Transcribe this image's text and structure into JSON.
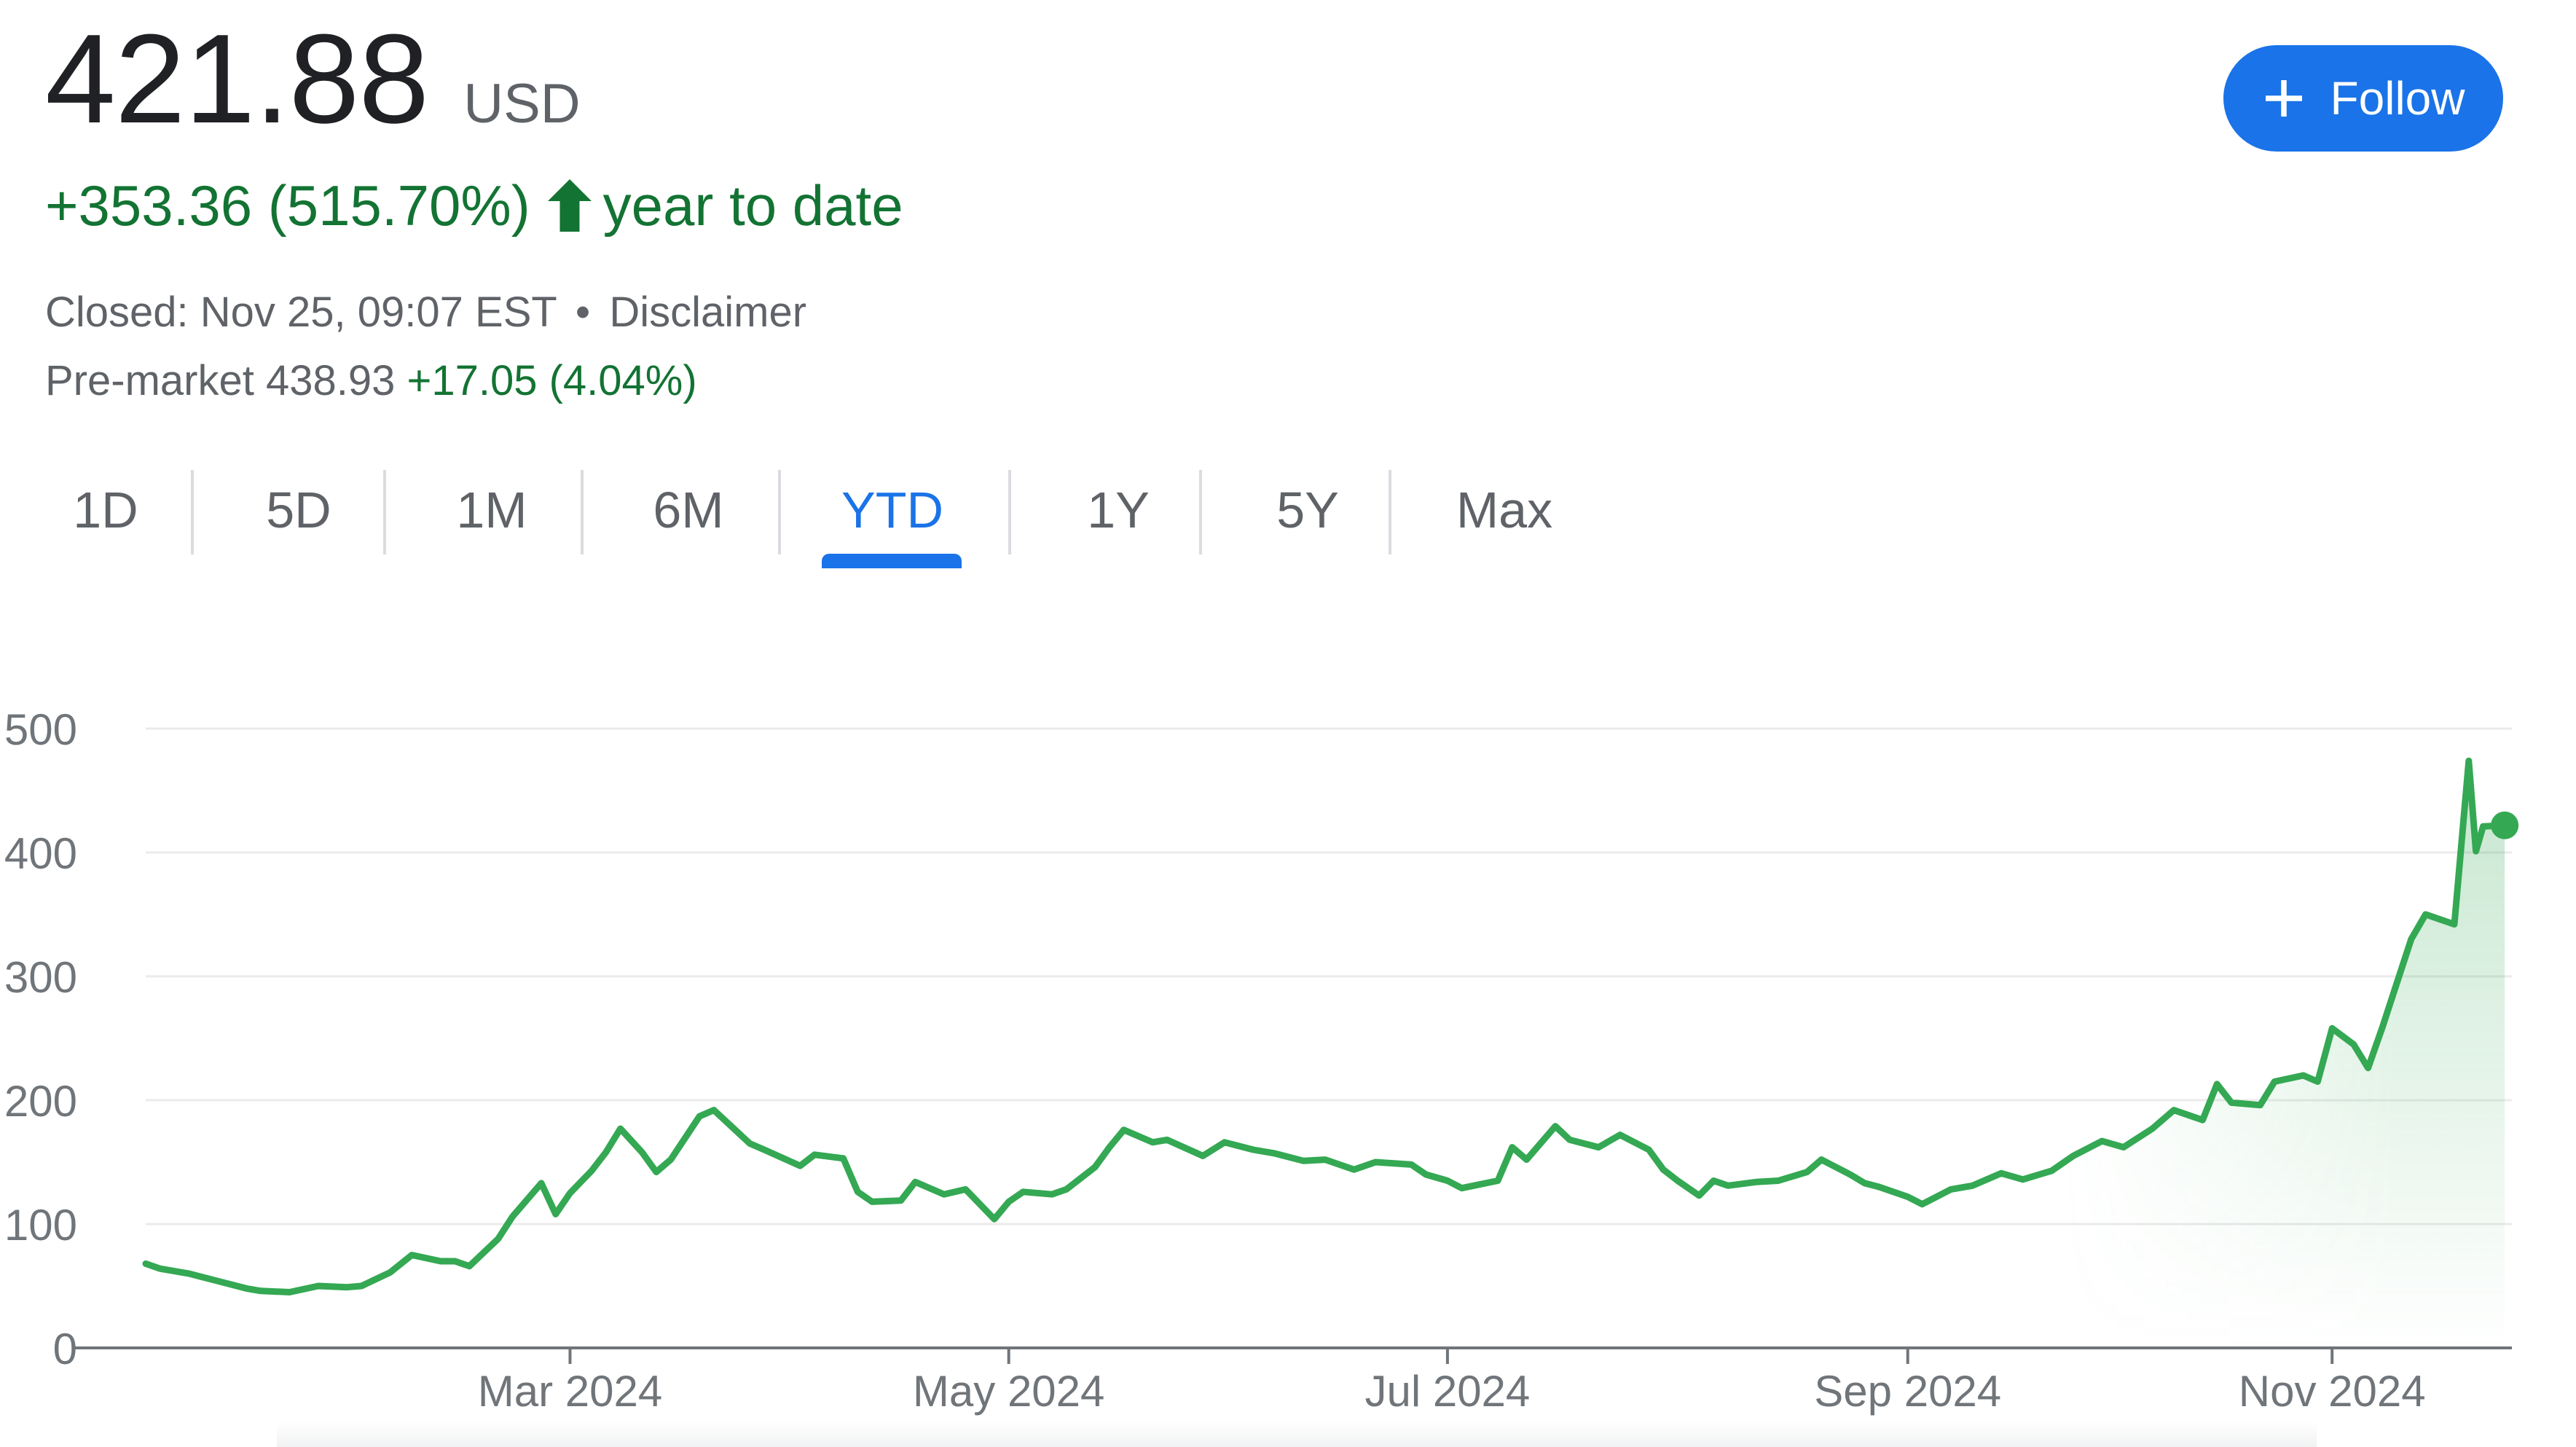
{
  "quote": {
    "price": "421.88",
    "currency": "USD",
    "change": "+353.36 (515.70%)",
    "change_period": "year to date",
    "closed_text": "Closed: Nov 25, 09:07 EST",
    "separator": "•",
    "disclaimer": "Disclaimer",
    "premarket_label": "Pre-market 438.93",
    "premarket_change": "+17.05 (4.04%)"
  },
  "follow_button": {
    "label": "Follow",
    "icon": "plus-icon",
    "color": "#1a73e8"
  },
  "range_tabs": [
    {
      "label": "1D"
    },
    {
      "label": "5D"
    },
    {
      "label": "1M"
    },
    {
      "label": "6M"
    },
    {
      "label": "YTD",
      "selected": true
    },
    {
      "label": "1Y"
    },
    {
      "label": "5Y"
    },
    {
      "label": "Max"
    }
  ],
  "colors": {
    "positive": "#137333",
    "line": "#34a853",
    "accent": "#1a73e8",
    "text": "#202124",
    "muted": "#5f6368"
  },
  "chart_data": {
    "type": "area",
    "title": "",
    "xlabel": "",
    "ylabel": "",
    "ylim": [
      0,
      500
    ],
    "yticks": [
      0,
      100,
      200,
      300,
      400,
      500
    ],
    "grid": true,
    "xlim": [
      "2024-01-02",
      "2024-11-26"
    ],
    "xticks": [
      {
        "date": "2024-03-01",
        "label": "Mar 2024"
      },
      {
        "date": "2024-05-01",
        "label": "May 2024"
      },
      {
        "date": "2024-07-01",
        "label": "Jul 2024"
      },
      {
        "date": "2024-09-03",
        "label": "Sep 2024"
      },
      {
        "date": "2024-11-01",
        "label": "Nov 2024"
      }
    ],
    "series": [
      {
        "x": [
          "2024-01-02",
          "2024-01-04",
          "2024-01-08",
          "2024-01-12",
          "2024-01-16",
          "2024-01-18",
          "2024-01-22",
          "2024-01-26",
          "2024-01-30",
          "2024-02-01",
          "2024-02-05",
          "2024-02-08",
          "2024-02-12",
          "2024-02-14",
          "2024-02-16",
          "2024-02-20",
          "2024-02-22",
          "2024-02-26",
          "2024-02-28",
          "2024-03-01",
          "2024-03-04",
          "2024-03-06",
          "2024-03-08",
          "2024-03-11",
          "2024-03-13",
          "2024-03-15",
          "2024-03-19",
          "2024-03-21",
          "2024-03-26",
          "2024-03-28",
          "2024-04-02",
          "2024-04-04",
          "2024-04-08",
          "2024-04-10",
          "2024-04-12",
          "2024-04-16",
          "2024-04-18",
          "2024-04-22",
          "2024-04-25",
          "2024-04-29",
          "2024-05-01",
          "2024-05-03",
          "2024-05-07",
          "2024-05-09",
          "2024-05-13",
          "2024-05-15",
          "2024-05-17",
          "2024-05-21",
          "2024-05-23",
          "2024-05-28",
          "2024-05-31",
          "2024-06-04",
          "2024-06-07",
          "2024-06-11",
          "2024-06-14",
          "2024-06-18",
          "2024-06-21",
          "2024-06-26",
          "2024-06-28",
          "2024-07-01",
          "2024-07-03",
          "2024-07-08",
          "2024-07-10",
          "2024-07-12",
          "2024-07-16",
          "2024-07-18",
          "2024-07-22",
          "2024-07-25",
          "2024-07-29",
          "2024-07-31",
          "2024-08-02",
          "2024-08-05",
          "2024-08-07",
          "2024-08-09",
          "2024-08-13",
          "2024-08-16",
          "2024-08-20",
          "2024-08-22",
          "2024-08-26",
          "2024-08-28",
          "2024-08-30",
          "2024-09-03",
          "2024-09-05",
          "2024-09-09",
          "2024-09-12",
          "2024-09-16",
          "2024-09-19",
          "2024-09-23",
          "2024-09-26",
          "2024-09-30",
          "2024-10-03",
          "2024-10-07",
          "2024-10-10",
          "2024-10-14",
          "2024-10-16",
          "2024-10-18",
          "2024-10-22",
          "2024-10-24",
          "2024-10-28",
          "2024-10-30",
          "2024-11-01",
          "2024-11-04",
          "2024-11-06",
          "2024-11-08",
          "2024-11-12",
          "2024-11-14",
          "2024-11-18",
          "2024-11-20",
          "2024-11-21",
          "2024-11-22",
          "2024-11-25"
        ],
        "values": [
          68,
          64,
          60,
          54,
          48,
          46,
          45,
          50,
          49,
          50,
          61,
          75,
          70,
          70,
          66,
          88,
          106,
          133,
          108,
          125,
          143,
          158,
          177,
          158,
          142,
          152,
          187,
          192,
          165,
          160,
          147,
          156,
          153,
          126,
          118,
          119,
          134,
          124,
          128,
          104,
          118,
          126,
          124,
          128,
          146,
          162,
          176,
          166,
          168,
          155,
          166,
          160,
          157,
          151,
          152,
          144,
          150,
          148,
          140,
          135,
          129,
          135,
          162,
          152,
          179,
          168,
          162,
          172,
          160,
          144,
          135,
          123,
          135,
          131,
          134,
          135,
          142,
          152,
          140,
          133,
          130,
          122,
          116,
          128,
          131,
          141,
          136,
          143,
          155,
          167,
          162,
          177,
          192,
          184,
          213,
          198,
          196,
          215,
          220,
          215,
          258,
          245,
          226,
          259,
          330,
          350,
          342,
          474,
          401,
          421,
          421.88
        ]
      }
    ],
    "last_point": {
      "date": "2024-11-25",
      "value": 421.88
    }
  }
}
